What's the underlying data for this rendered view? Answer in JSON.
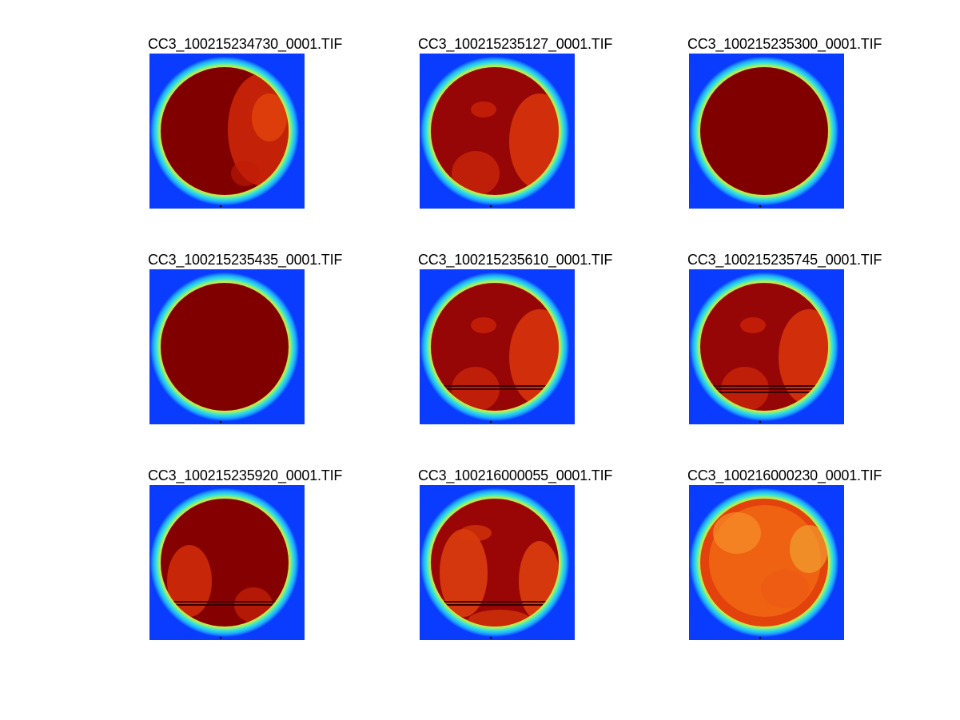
{
  "figure": {
    "background": "#ffffff",
    "colormap": "jet",
    "panels": [
      {
        "title": "CC3_100215234730_0001.TIF",
        "cloud_cover": "left-heavy",
        "streaks": 0
      },
      {
        "title": "CC3_100215235127_0001.TIF",
        "cloud_cover": "mixed",
        "streaks": 0
      },
      {
        "title": "CC3_100215235300_0001.TIF",
        "cloud_cover": "full",
        "streaks": 0
      },
      {
        "title": "CC3_100215235435_0001.TIF",
        "cloud_cover": "full",
        "streaks": 0
      },
      {
        "title": "CC3_100215235610_0001.TIF",
        "cloud_cover": "mixed",
        "streaks": 2
      },
      {
        "title": "CC3_100215235745_0001.TIF",
        "cloud_cover": "mixed",
        "streaks": 3
      },
      {
        "title": "CC3_100215235920_0001.TIF",
        "cloud_cover": "mostly",
        "streaks": 2
      },
      {
        "title": "CC3_100216000055_0001.TIF",
        "cloud_cover": "partial",
        "streaks": 2
      },
      {
        "title": "CC3_100216000230_0001.TIF",
        "cloud_cover": "clear",
        "streaks": 0
      }
    ]
  }
}
